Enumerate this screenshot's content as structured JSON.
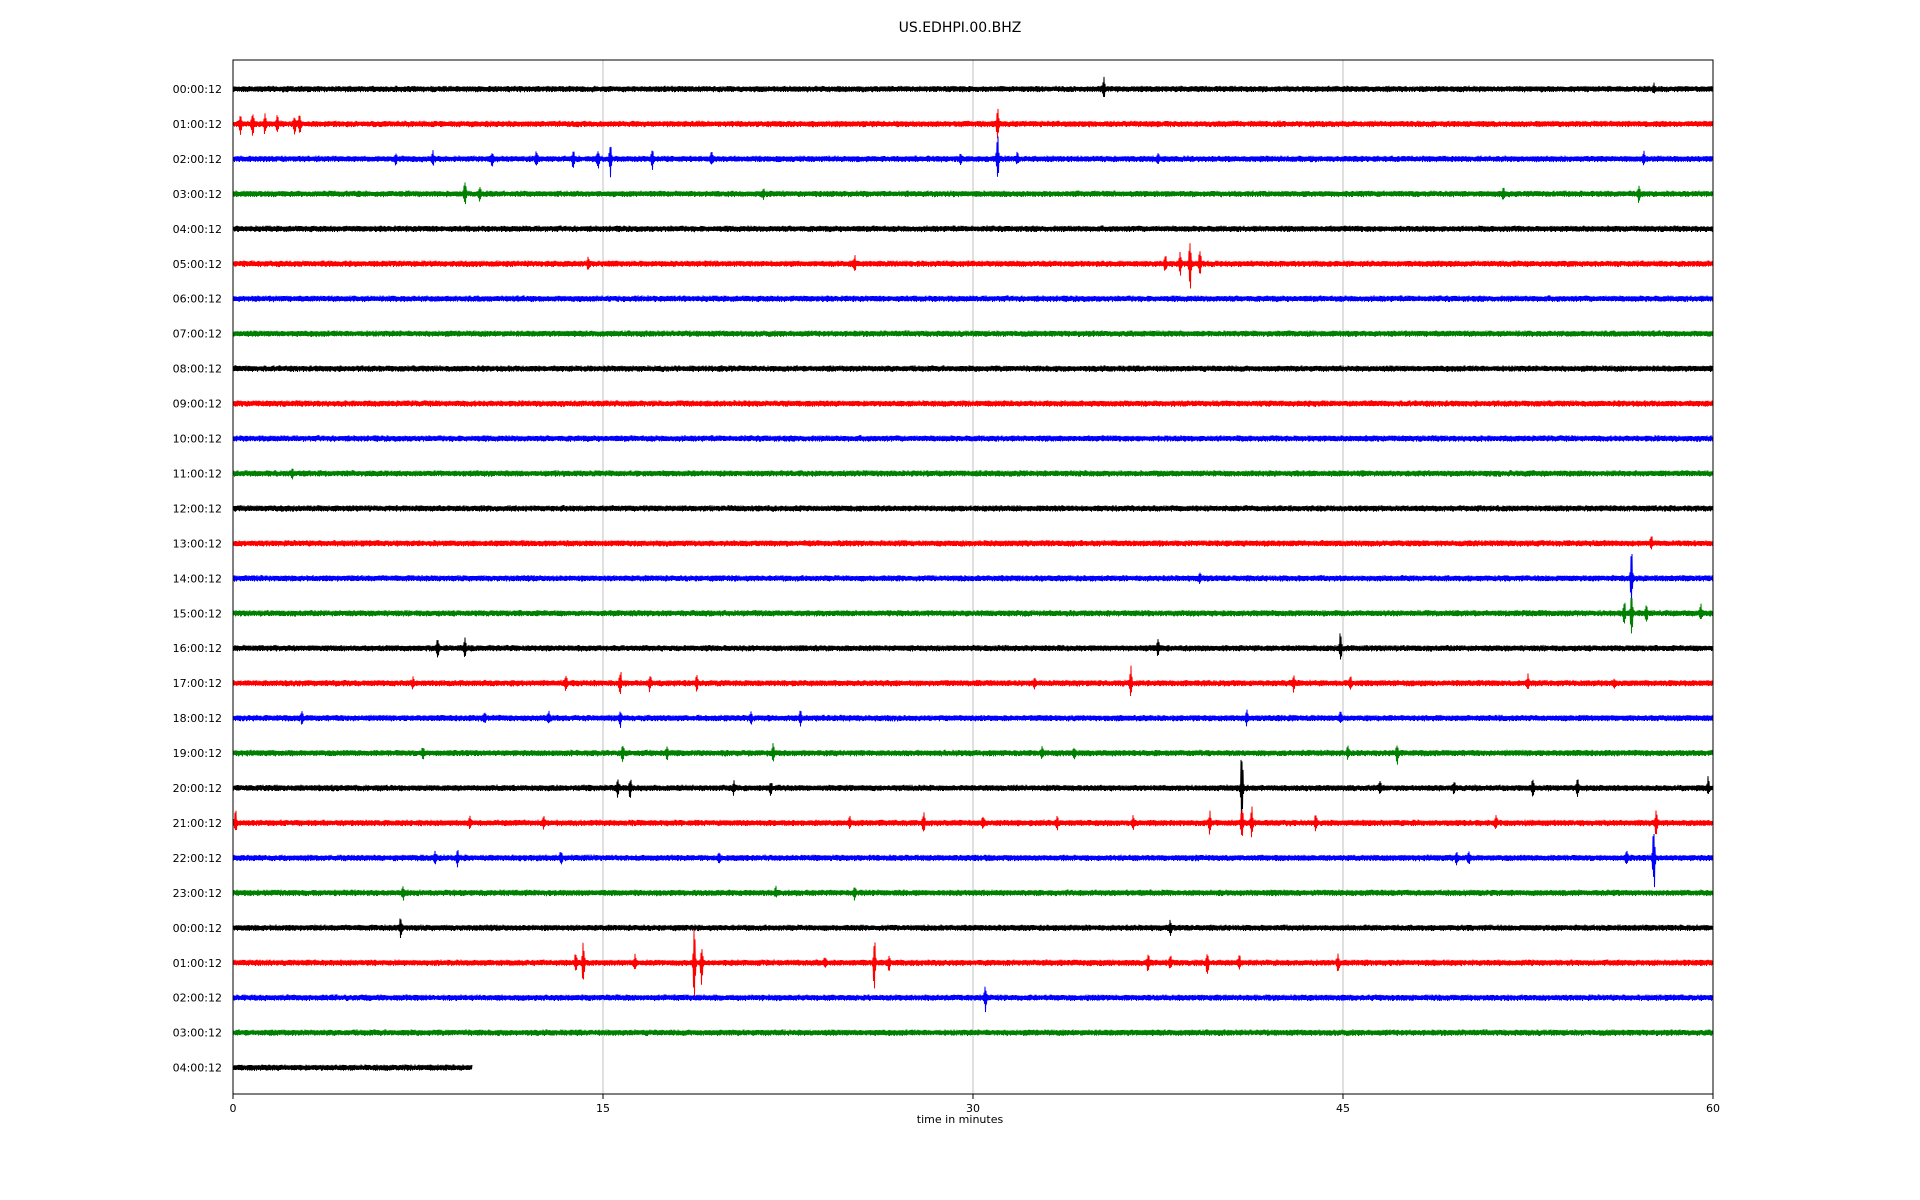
{
  "chart_data": {
    "type": "line",
    "title": "US.EDHPI.00.BHZ",
    "xlabel": "time in minutes",
    "ylabel": "",
    "xlim": [
      0,
      60
    ],
    "xticks": [
      0,
      15,
      30,
      45,
      60
    ],
    "grid_x": true,
    "colors": [
      "#000000",
      "#ff0000",
      "#0000ff",
      "#008000"
    ],
    "rows": [
      {
        "label": "00:00:12",
        "end": 60,
        "events": [
          {
            "t": 35.3,
            "a": 12
          },
          {
            "t": 57.6,
            "a": 5
          }
        ]
      },
      {
        "label": "01:00:12",
        "end": 60,
        "events": [
          {
            "t": 0.3,
            "a": 10
          },
          {
            "t": 0.8,
            "a": 16
          },
          {
            "t": 1.3,
            "a": 12
          },
          {
            "t": 1.8,
            "a": 9
          },
          {
            "t": 2.5,
            "a": 10
          },
          {
            "t": 2.7,
            "a": 12
          },
          {
            "t": 31.0,
            "a": 20
          }
        ]
      },
      {
        "label": "02:00:12",
        "end": 60,
        "events": [
          {
            "t": 6.6,
            "a": 6
          },
          {
            "t": 8.1,
            "a": 8
          },
          {
            "t": 10.5,
            "a": 8
          },
          {
            "t": 12.3,
            "a": 7
          },
          {
            "t": 13.8,
            "a": 9
          },
          {
            "t": 14.8,
            "a": 14
          },
          {
            "t": 15.3,
            "a": 20
          },
          {
            "t": 17.0,
            "a": 12
          },
          {
            "t": 19.4,
            "a": 6
          },
          {
            "t": 29.5,
            "a": 5
          },
          {
            "t": 31.0,
            "a": 26
          },
          {
            "t": 31.8,
            "a": 6
          },
          {
            "t": 37.5,
            "a": 5
          },
          {
            "t": 57.2,
            "a": 6
          }
        ]
      },
      {
        "label": "03:00:12",
        "end": 60,
        "events": [
          {
            "t": 9.4,
            "a": 14
          },
          {
            "t": 10.0,
            "a": 10
          },
          {
            "t": 21.5,
            "a": 5
          },
          {
            "t": 51.5,
            "a": 7
          },
          {
            "t": 57.0,
            "a": 10
          }
        ]
      },
      {
        "label": "04:00:12",
        "end": 60,
        "events": []
      },
      {
        "label": "05:00:12",
        "end": 60,
        "events": [
          {
            "t": 14.4,
            "a": 5
          },
          {
            "t": 25.2,
            "a": 8
          },
          {
            "t": 37.8,
            "a": 10
          },
          {
            "t": 38.4,
            "a": 12
          },
          {
            "t": 38.8,
            "a": 28
          },
          {
            "t": 39.2,
            "a": 14
          }
        ]
      },
      {
        "label": "06:00:12",
        "end": 60,
        "events": []
      },
      {
        "label": "07:00:12",
        "end": 60,
        "events": []
      },
      {
        "label": "08:00:12",
        "end": 60,
        "events": []
      },
      {
        "label": "09:00:12",
        "end": 60,
        "events": []
      },
      {
        "label": "10:00:12",
        "end": 60,
        "events": []
      },
      {
        "label": "11:00:12",
        "end": 60,
        "events": [
          {
            "t": 2.4,
            "a": 5
          }
        ]
      },
      {
        "label": "12:00:12",
        "end": 60,
        "events": []
      },
      {
        "label": "13:00:12",
        "end": 60,
        "events": [
          {
            "t": 57.5,
            "a": 6
          }
        ]
      },
      {
        "label": "14:00:12",
        "end": 60,
        "events": [
          {
            "t": 39.2,
            "a": 5
          },
          {
            "t": 56.7,
            "a": 34
          }
        ]
      },
      {
        "label": "15:00:12",
        "end": 60,
        "events": [
          {
            "t": 56.4,
            "a": 14
          },
          {
            "t": 56.7,
            "a": 28
          },
          {
            "t": 57.3,
            "a": 10
          },
          {
            "t": 59.5,
            "a": 9
          }
        ]
      },
      {
        "label": "16:00:12",
        "end": 60,
        "events": [
          {
            "t": 8.3,
            "a": 12
          },
          {
            "t": 9.4,
            "a": 10
          },
          {
            "t": 37.5,
            "a": 10
          },
          {
            "t": 44.9,
            "a": 16
          }
        ]
      },
      {
        "label": "17:00:12",
        "end": 60,
        "events": [
          {
            "t": 7.3,
            "a": 6
          },
          {
            "t": 13.5,
            "a": 8
          },
          {
            "t": 15.7,
            "a": 14
          },
          {
            "t": 16.9,
            "a": 8
          },
          {
            "t": 18.8,
            "a": 8
          },
          {
            "t": 32.5,
            "a": 6
          },
          {
            "t": 36.4,
            "a": 16
          },
          {
            "t": 43.0,
            "a": 8
          },
          {
            "t": 45.3,
            "a": 6
          },
          {
            "t": 52.5,
            "a": 7
          },
          {
            "t": 56.0,
            "a": 5
          }
        ]
      },
      {
        "label": "18:00:12",
        "end": 60,
        "events": [
          {
            "t": 2.8,
            "a": 6
          },
          {
            "t": 10.2,
            "a": 7
          },
          {
            "t": 12.8,
            "a": 7
          },
          {
            "t": 15.7,
            "a": 8
          },
          {
            "t": 21.0,
            "a": 6
          },
          {
            "t": 23.0,
            "a": 7
          },
          {
            "t": 41.1,
            "a": 8
          },
          {
            "t": 44.9,
            "a": 6
          }
        ]
      },
      {
        "label": "19:00:12",
        "end": 60,
        "events": [
          {
            "t": 7.7,
            "a": 5
          },
          {
            "t": 15.8,
            "a": 8
          },
          {
            "t": 17.6,
            "a": 6
          },
          {
            "t": 21.9,
            "a": 10
          },
          {
            "t": 32.8,
            "a": 6
          },
          {
            "t": 34.1,
            "a": 6
          },
          {
            "t": 45.2,
            "a": 6
          },
          {
            "t": 47.2,
            "a": 12
          }
        ]
      },
      {
        "label": "20:00:12",
        "end": 60,
        "events": [
          {
            "t": 15.6,
            "a": 8
          },
          {
            "t": 16.1,
            "a": 10
          },
          {
            "t": 20.3,
            "a": 7
          },
          {
            "t": 21.8,
            "a": 6
          },
          {
            "t": 40.9,
            "a": 50
          },
          {
            "t": 46.5,
            "a": 8
          },
          {
            "t": 49.5,
            "a": 6
          },
          {
            "t": 52.7,
            "a": 10
          },
          {
            "t": 54.5,
            "a": 10
          },
          {
            "t": 59.8,
            "a": 10
          }
        ]
      },
      {
        "label": "21:00:12",
        "end": 60,
        "events": [
          {
            "t": 0.1,
            "a": 12
          },
          {
            "t": 9.6,
            "a": 6
          },
          {
            "t": 12.6,
            "a": 6
          },
          {
            "t": 25.0,
            "a": 6
          },
          {
            "t": 28.0,
            "a": 12
          },
          {
            "t": 30.4,
            "a": 6
          },
          {
            "t": 33.4,
            "a": 7
          },
          {
            "t": 36.5,
            "a": 7
          },
          {
            "t": 39.6,
            "a": 14
          },
          {
            "t": 40.9,
            "a": 20
          },
          {
            "t": 41.3,
            "a": 16
          },
          {
            "t": 43.9,
            "a": 8
          },
          {
            "t": 51.2,
            "a": 6
          },
          {
            "t": 57.7,
            "a": 14
          }
        ]
      },
      {
        "label": "22:00:12",
        "end": 60,
        "events": [
          {
            "t": 8.2,
            "a": 6
          },
          {
            "t": 9.1,
            "a": 8
          },
          {
            "t": 13.3,
            "a": 8
          },
          {
            "t": 19.7,
            "a": 6
          },
          {
            "t": 49.6,
            "a": 7
          },
          {
            "t": 50.1,
            "a": 6
          },
          {
            "t": 56.5,
            "a": 8
          },
          {
            "t": 57.6,
            "a": 40
          }
        ]
      },
      {
        "label": "23:00:12",
        "end": 60,
        "events": [
          {
            "t": 6.9,
            "a": 6
          },
          {
            "t": 22.0,
            "a": 5
          },
          {
            "t": 25.2,
            "a": 8
          }
        ]
      },
      {
        "label": "00:00:12",
        "end": 60,
        "events": [
          {
            "t": 6.8,
            "a": 12
          },
          {
            "t": 38.0,
            "a": 7
          }
        ]
      },
      {
        "label": "01:00:12",
        "end": 60,
        "events": [
          {
            "t": 13.9,
            "a": 10
          },
          {
            "t": 14.2,
            "a": 24
          },
          {
            "t": 16.3,
            "a": 10
          },
          {
            "t": 18.7,
            "a": 40
          },
          {
            "t": 19.0,
            "a": 22
          },
          {
            "t": 24.0,
            "a": 6
          },
          {
            "t": 26.0,
            "a": 28
          },
          {
            "t": 26.6,
            "a": 8
          },
          {
            "t": 37.1,
            "a": 10
          },
          {
            "t": 38.0,
            "a": 8
          },
          {
            "t": 39.5,
            "a": 16
          },
          {
            "t": 40.8,
            "a": 9
          },
          {
            "t": 44.8,
            "a": 10
          }
        ]
      },
      {
        "label": "02:00:12",
        "end": 60,
        "events": [
          {
            "t": 30.5,
            "a": 14
          }
        ]
      },
      {
        "label": "03:00:12",
        "end": 60,
        "events": []
      },
      {
        "label": "04:00:12",
        "end": 9.7,
        "events": []
      }
    ]
  }
}
